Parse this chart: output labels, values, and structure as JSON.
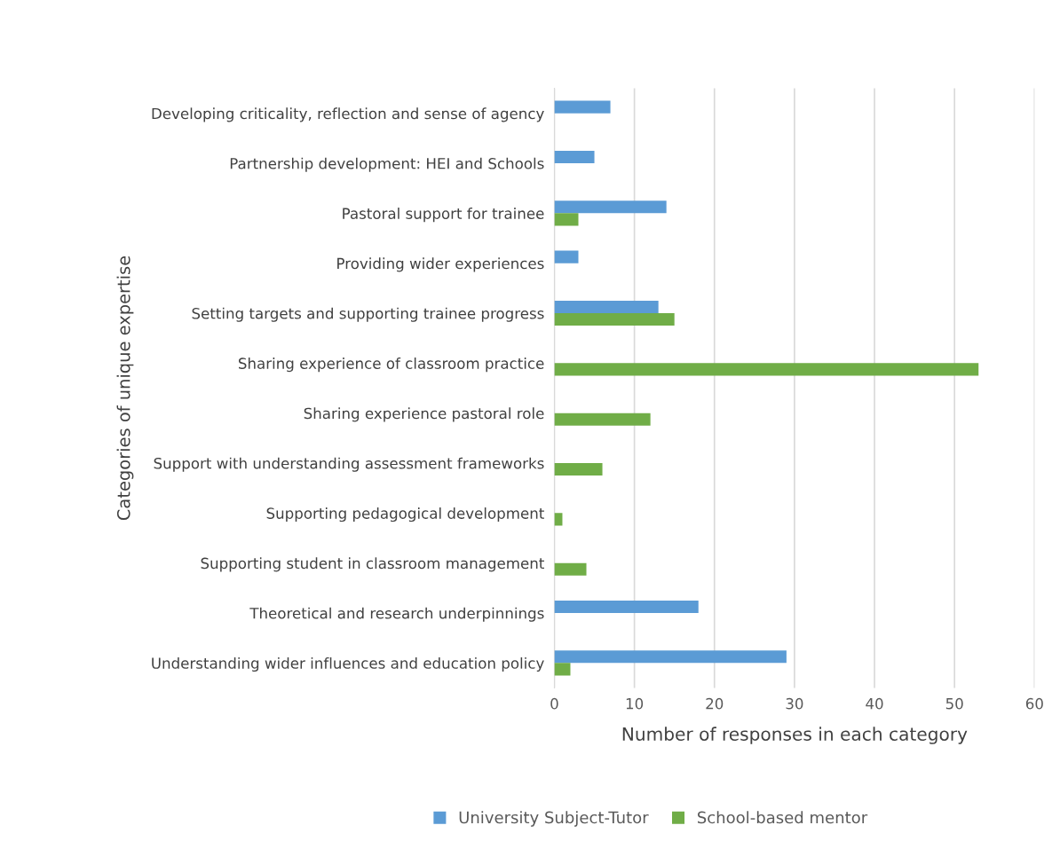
{
  "chart_data": {
    "type": "bar",
    "orientation": "horizontal",
    "xlabel": "Number of responses in each category",
    "ylabel": "Categories of unique expertise",
    "categories": [
      "Developing criticality, reflection and sense of agency",
      "Partnership development: HEI and Schools",
      "Pastoral support for trainee",
      "Providing wider experiences",
      "Setting targets and supporting trainee progress",
      "Sharing experience of classroom practice",
      "Sharing experience pastoral role",
      "Support with understanding assessment frameworks",
      "Supporting pedagogical development",
      "Supporting student in classroom management",
      "Theoretical and research underpinnings",
      "Understanding wider influences and education policy"
    ],
    "series": [
      {
        "name": "University Subject-Tutor",
        "color": "#5b9bd5",
        "values": [
          7,
          5,
          14,
          3,
          13,
          null,
          null,
          null,
          null,
          null,
          18,
          29
        ]
      },
      {
        "name": "School-based mentor",
        "color": "#70ad47",
        "values": [
          null,
          null,
          3,
          null,
          15,
          53,
          12,
          6,
          1,
          4,
          null,
          2
        ]
      }
    ],
    "xlim": [
      0,
      60
    ],
    "xticks": [
      0,
      10,
      20,
      30,
      40,
      50,
      60
    ],
    "grid": "x",
    "legend": "bottom"
  }
}
